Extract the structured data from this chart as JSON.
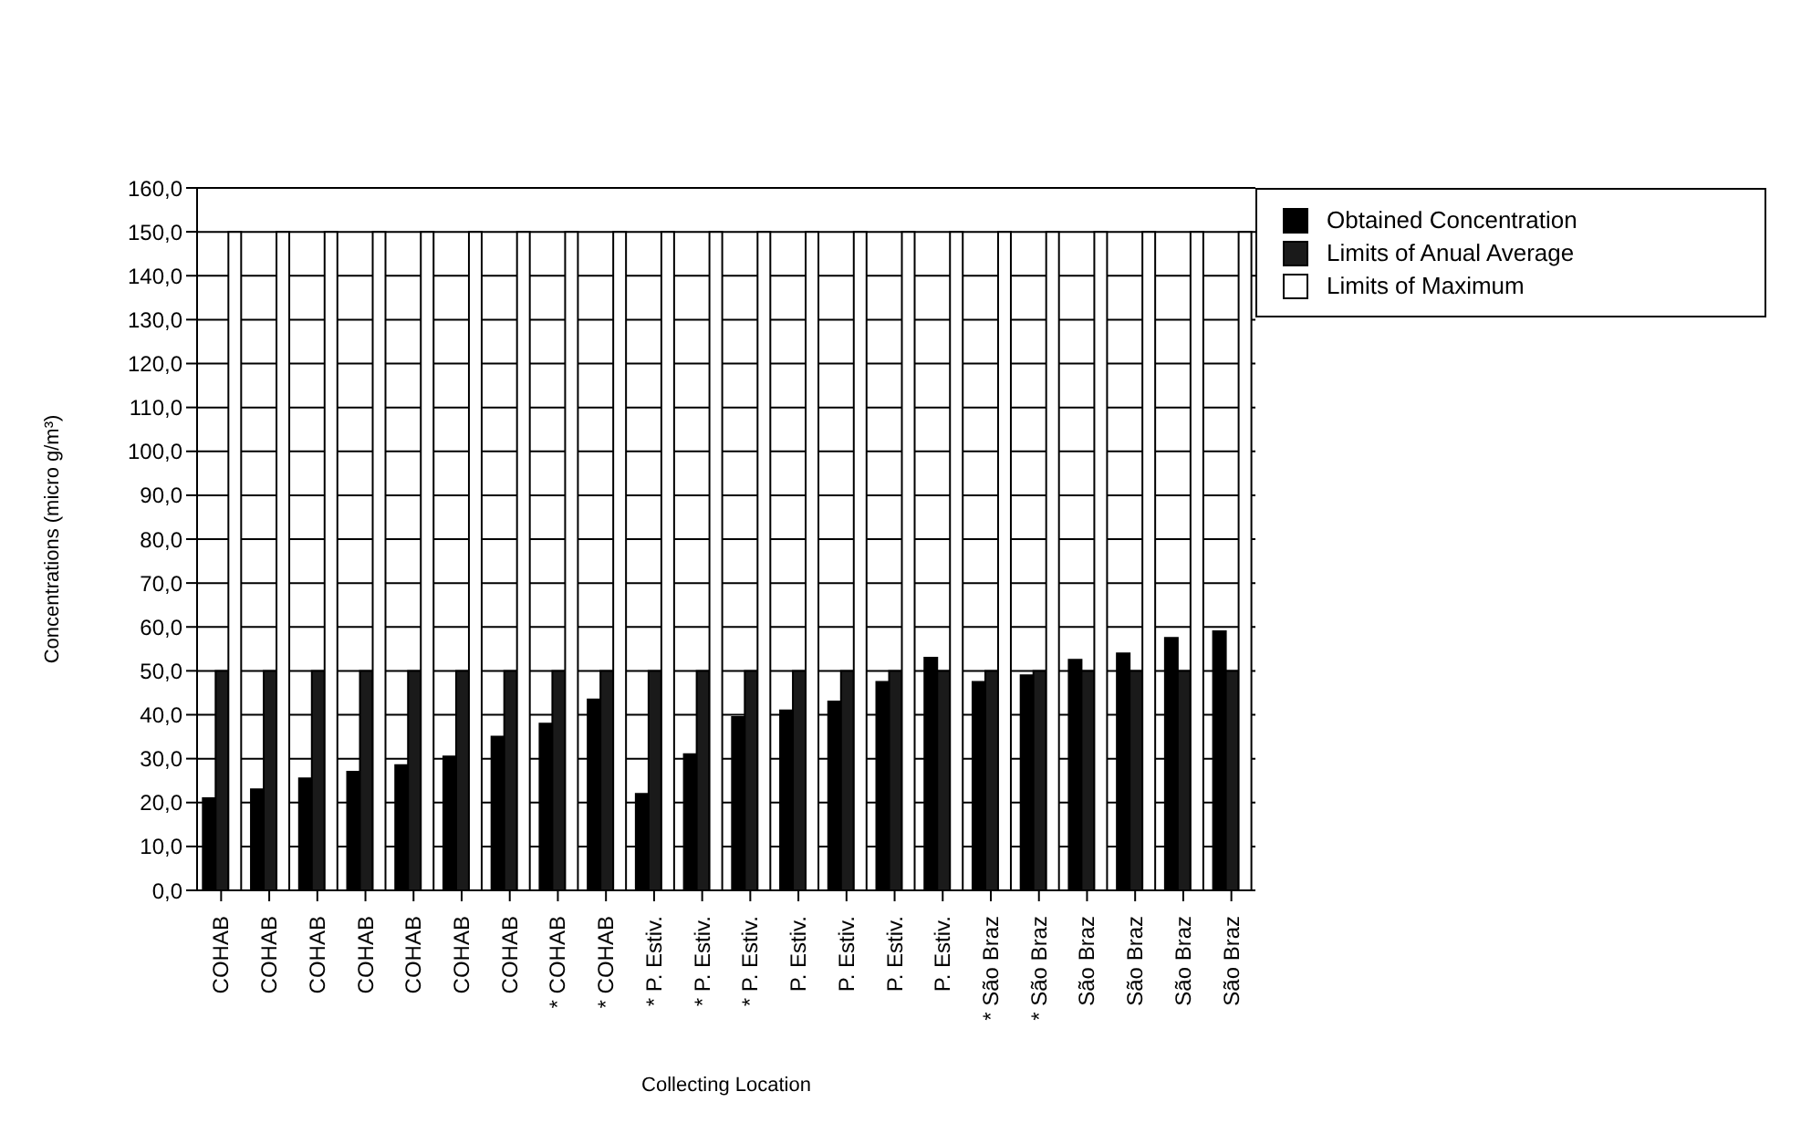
{
  "chart_data": {
    "type": "bar",
    "xlabel": "Collecting Location",
    "ylabel": "Concentrations (micro g/m³)",
    "categories": [
      "COHAB",
      "COHAB",
      "COHAB",
      "COHAB",
      "COHAB",
      "COHAB",
      "COHAB",
      "* COHAB",
      "* COHAB",
      "* P. Estiv.",
      "* P. Estiv.",
      "* P. Estiv.",
      "P. Estiv.",
      "P. Estiv.",
      "P. Estiv.",
      "P. Estiv.",
      "* São Braz",
      "* São Braz",
      "São Braz",
      "São Braz",
      "São Braz",
      "São Braz"
    ],
    "series": [
      {
        "name": "Obtained Concentration",
        "color": "#000000",
        "values": [
          21,
          23,
          25.5,
          27,
          28.5,
          30.5,
          35,
          38,
          43.5,
          22,
          31,
          39.5,
          41,
          43,
          47.5,
          53,
          47.5,
          49,
          52.5,
          54,
          57.5,
          59
        ]
      },
      {
        "name": "Limits of Anual Average",
        "color": "#1a1a1a",
        "values": [
          50,
          50,
          50,
          50,
          50,
          50,
          50,
          50,
          50,
          50,
          50,
          50,
          50,
          50,
          50,
          50,
          50,
          50,
          50,
          50,
          50,
          50
        ]
      },
      {
        "name": "Limits of Maximum",
        "color": "#ffffff",
        "values": [
          150,
          150,
          150,
          150,
          150,
          150,
          150,
          150,
          150,
          150,
          150,
          150,
          150,
          150,
          150,
          150,
          150,
          150,
          150,
          150,
          150,
          150
        ]
      }
    ],
    "ylim": [
      0,
      160
    ],
    "yticks": [
      {
        "value": 0,
        "label": "0,0"
      },
      {
        "value": 10,
        "label": "10,0"
      },
      {
        "value": 20,
        "label": "20,0"
      },
      {
        "value": 30,
        "label": "30,0"
      },
      {
        "value": 40,
        "label": "40,0"
      },
      {
        "value": 50,
        "label": "50,0"
      },
      {
        "value": 60,
        "label": "60,0"
      },
      {
        "value": 70,
        "label": "70,0"
      },
      {
        "value": 80,
        "label": "80,0"
      },
      {
        "value": 90,
        "label": "90,0"
      },
      {
        "value": 100,
        "label": "100,0"
      },
      {
        "value": 110,
        "label": "110,0"
      },
      {
        "value": 120,
        "label": "120,0"
      },
      {
        "value": 130,
        "label": "130,0"
      },
      {
        "value": 140,
        "label": "140,0"
      },
      {
        "value": 150,
        "label": "150,0"
      },
      {
        "value": 160,
        "label": "160,0"
      }
    ],
    "grid": "y",
    "legend": "top right"
  }
}
